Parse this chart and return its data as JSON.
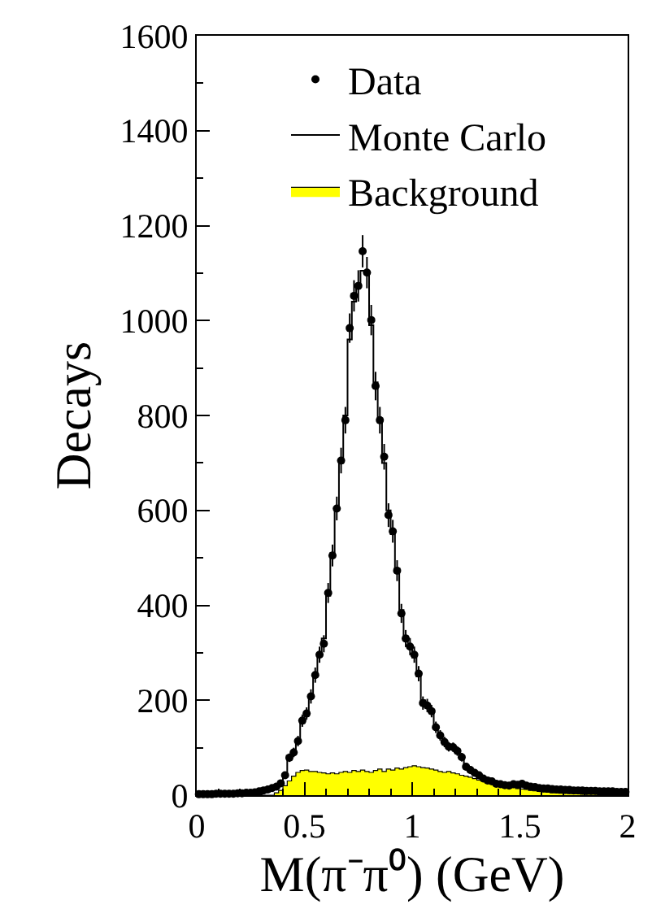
{
  "chart_data": {
    "type": "step",
    "xlabel": "M(π⁻π⁰) (GeV)",
    "ylabel": "Decays",
    "xlim": [
      0,
      2
    ],
    "xticks": [
      0,
      0.5,
      1,
      1.5,
      2
    ],
    "ylim": [
      0,
      1600
    ],
    "yticks": [
      0,
      200,
      400,
      600,
      800,
      1000,
      1200,
      1400,
      1600
    ],
    "legend": "top",
    "x": [
      0.01,
      0.03,
      0.05,
      0.07,
      0.09,
      0.11,
      0.13,
      0.15,
      0.17,
      0.19,
      0.21,
      0.23,
      0.25,
      0.27,
      0.29,
      0.31,
      0.33,
      0.35,
      0.37,
      0.39,
      0.41,
      0.43,
      0.45,
      0.47,
      0.49,
      0.51,
      0.53,
      0.55,
      0.57,
      0.59,
      0.61,
      0.63,
      0.65,
      0.67,
      0.69,
      0.71,
      0.73,
      0.75,
      0.77,
      0.79,
      0.81,
      0.83,
      0.85,
      0.87,
      0.89,
      0.91,
      0.93,
      0.95,
      0.97,
      0.99,
      1.01,
      1.03,
      1.05,
      1.07,
      1.09,
      1.11,
      1.13,
      1.15,
      1.17,
      1.19,
      1.21,
      1.23,
      1.25,
      1.27,
      1.29,
      1.31,
      1.33,
      1.35,
      1.37,
      1.39,
      1.41,
      1.43,
      1.45,
      1.47,
      1.49,
      1.51,
      1.53,
      1.55,
      1.57,
      1.59,
      1.61,
      1.63,
      1.65,
      1.67,
      1.69,
      1.71,
      1.73,
      1.75,
      1.77,
      1.79,
      1.81,
      1.83,
      1.85,
      1.87,
      1.89,
      1.91,
      1.93,
      1.95,
      1.97,
      1.99
    ],
    "series": [
      {
        "name": "Data",
        "type": "scatter",
        "color": "#000000",
        "marker": "circle",
        "values": [
          2,
          2,
          2,
          2,
          3,
          3,
          3,
          3,
          3,
          4,
          4,
          5,
          5,
          6,
          8,
          10,
          12,
          15,
          18,
          25,
          42,
          79,
          90,
          114,
          157,
          172,
          208,
          253,
          296,
          319,
          426,
          505,
          604,
          705,
          790,
          984,
          1052,
          1073,
          1146,
          1101,
          1001,
          862,
          790,
          713,
          590,
          556,
          473,
          383,
          330,
          313,
          296,
          256,
          194,
          189,
          177,
          143,
          126,
          112,
          102,
          101,
          93,
          80,
          60,
          53,
          47,
          42,
          35,
          31,
          29,
          24,
          23,
          21,
          20,
          23,
          22,
          24,
          20,
          18,
          17,
          15,
          14,
          14,
          13,
          12,
          12,
          11,
          11,
          10,
          10,
          10,
          9,
          9,
          9,
          8,
          8,
          8,
          8,
          7,
          7,
          7
        ],
        "errors": [
          2,
          2,
          2,
          2,
          2,
          2,
          2,
          2,
          2,
          2,
          2,
          3,
          3,
          3,
          3,
          3,
          4,
          4,
          5,
          5,
          7,
          9,
          10,
          11,
          13,
          13,
          15,
          16,
          17,
          18,
          21,
          23,
          25,
          27,
          28,
          31,
          33,
          33,
          34,
          33,
          32,
          30,
          28,
          27,
          25,
          24,
          22,
          20,
          18,
          18,
          17,
          16,
          14,
          14,
          13,
          12,
          11,
          11,
          10,
          10,
          10,
          9,
          8,
          8,
          7,
          7,
          6,
          6,
          5,
          5,
          5,
          5,
          5,
          5,
          5,
          5,
          5,
          4,
          4,
          4,
          4,
          4,
          4,
          4,
          4,
          3,
          3,
          3,
          3,
          3,
          3,
          3,
          3,
          3,
          3,
          3,
          3,
          3,
          3,
          3
        ]
      },
      {
        "name": "Monte Carlo",
        "color": "#000000",
        "values": [
          2,
          2,
          2,
          2,
          3,
          3,
          3,
          3,
          3,
          4,
          4,
          5,
          5,
          6,
          8,
          10,
          12,
          14,
          18,
          26,
          45,
          75,
          92,
          118,
          152,
          175,
          205,
          250,
          300,
          330,
          420,
          510,
          600,
          700,
          800,
          960,
          1040,
          1070,
          1105,
          1105,
          990,
          870,
          790,
          700,
          600,
          550,
          470,
          390,
          335,
          310,
          290,
          250,
          200,
          190,
          175,
          145,
          125,
          112,
          105,
          100,
          90,
          78,
          62,
          54,
          48,
          42,
          36,
          32,
          28,
          25,
          23,
          21,
          20,
          22,
          22,
          22,
          20,
          18,
          17,
          15,
          14,
          14,
          13,
          12,
          12,
          11,
          11,
          10,
          10,
          10,
          9,
          9,
          9,
          8,
          8,
          8,
          8,
          7,
          7,
          7
        ]
      },
      {
        "name": "Background",
        "type": "area",
        "color": "#ffff00",
        "values": [
          0,
          0,
          0,
          0,
          0,
          0,
          0,
          0,
          0,
          0,
          0,
          0,
          0,
          0,
          0,
          0,
          0,
          0,
          5,
          10,
          20,
          30,
          40,
          48,
          52,
          53,
          50,
          50,
          48,
          47,
          45,
          47,
          45,
          48,
          50,
          48,
          52,
          50,
          53,
          50,
          48,
          52,
          55,
          50,
          55,
          53,
          57,
          55,
          58,
          60,
          62,
          60,
          58,
          57,
          55,
          53,
          50,
          48,
          50,
          47,
          45,
          42,
          40,
          38,
          35,
          32,
          30,
          28,
          26,
          24,
          22,
          20,
          18,
          16,
          14,
          13,
          12,
          10,
          9,
          8,
          7,
          6,
          5,
          5,
          4,
          4,
          3,
          3,
          3,
          2,
          2,
          2,
          2,
          1,
          1,
          1,
          1,
          1,
          1,
          1
        ]
      }
    ]
  }
}
